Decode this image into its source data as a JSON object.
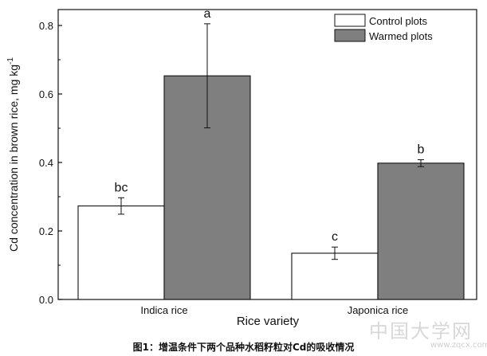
{
  "chart_data": {
    "type": "bar",
    "categories": [
      "Indica rice",
      "Japonica rice"
    ],
    "series": [
      {
        "name": "Control plots",
        "values": [
          0.273,
          0.135
        ],
        "errors": [
          0.024,
          0.018
        ],
        "letters": [
          "bc",
          "c"
        ],
        "color": "#ffffff"
      },
      {
        "name": "Warmed plots",
        "values": [
          0.653,
          0.398
        ],
        "errors": [
          0.152,
          0.01
        ],
        "letters": [
          "a",
          "b"
        ],
        "color": "#7f7f7f"
      }
    ],
    "xlabel": "Rice variety",
    "ylabel": "Cd concentration in brown rice, mg kg",
    "ylabel_superscript": "-1",
    "ylim": [
      0.0,
      0.9
    ],
    "yticks": [
      "0.0",
      "0.2",
      "0.4",
      "0.6",
      "0.8"
    ],
    "legend_position": "top-right",
    "grid": false
  },
  "caption": "图1：增温条件下两个品种水稻籽粒对Cd的吸收情况",
  "watermark": "中国大学网",
  "watermark_url": "www.zqcx.com"
}
